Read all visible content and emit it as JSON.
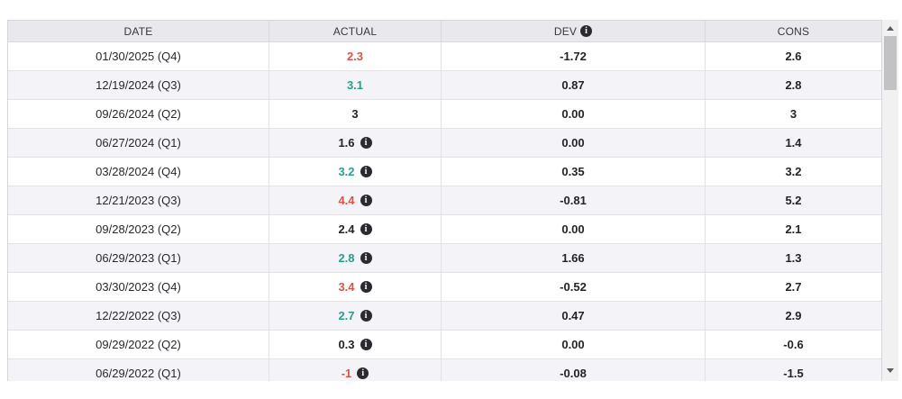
{
  "table": {
    "columns": [
      {
        "key": "date",
        "label": "DATE"
      },
      {
        "key": "actual",
        "label": "ACTUAL"
      },
      {
        "key": "dev",
        "label": "DEV",
        "info_icon": true
      },
      {
        "key": "cons",
        "label": "CONS"
      }
    ],
    "rows": [
      {
        "date": "01/30/2025 (Q4)",
        "actual": "2.3",
        "actual_sentiment": "negative",
        "actual_info": false,
        "dev": "-1.72",
        "cons": "2.6"
      },
      {
        "date": "12/19/2024 (Q3)",
        "actual": "3.1",
        "actual_sentiment": "positive",
        "actual_info": false,
        "dev": "0.87",
        "cons": "2.8"
      },
      {
        "date": "09/26/2024 (Q2)",
        "actual": "3",
        "actual_sentiment": "neutral",
        "actual_info": false,
        "dev": "0.00",
        "cons": "3"
      },
      {
        "date": "06/27/2024 (Q1)",
        "actual": "1.6",
        "actual_sentiment": "neutral",
        "actual_info": true,
        "dev": "0.00",
        "cons": "1.4"
      },
      {
        "date": "03/28/2024 (Q4)",
        "actual": "3.2",
        "actual_sentiment": "positive",
        "actual_info": true,
        "dev": "0.35",
        "cons": "3.2"
      },
      {
        "date": "12/21/2023 (Q3)",
        "actual": "4.4",
        "actual_sentiment": "negative",
        "actual_info": true,
        "dev": "-0.81",
        "cons": "5.2"
      },
      {
        "date": "09/28/2023 (Q2)",
        "actual": "2.4",
        "actual_sentiment": "neutral",
        "actual_info": true,
        "dev": "0.00",
        "cons": "2.1"
      },
      {
        "date": "06/29/2023 (Q1)",
        "actual": "2.8",
        "actual_sentiment": "positive",
        "actual_info": true,
        "dev": "1.66",
        "cons": "1.3"
      },
      {
        "date": "03/30/2023 (Q4)",
        "actual": "3.4",
        "actual_sentiment": "negative",
        "actual_info": true,
        "dev": "-0.52",
        "cons": "2.7"
      },
      {
        "date": "12/22/2022 (Q3)",
        "actual": "2.7",
        "actual_sentiment": "positive",
        "actual_info": true,
        "dev": "0.47",
        "cons": "2.9"
      },
      {
        "date": "09/29/2022 (Q2)",
        "actual": "0.3",
        "actual_sentiment": "neutral",
        "actual_info": true,
        "dev": "0.00",
        "cons": "-0.6"
      },
      {
        "date": "06/29/2022 (Q1)",
        "actual": "-1",
        "actual_sentiment": "negative",
        "actual_info": true,
        "dev": "-0.08",
        "cons": "-1.5"
      }
    ]
  },
  "colors": {
    "negative": "#d65549",
    "positive": "#2a9e8a",
    "neutral": "#222428",
    "alt_row_bg": "#f3f3f8",
    "header_bg": "#e9e9ed"
  },
  "icons": {
    "info": "i"
  }
}
